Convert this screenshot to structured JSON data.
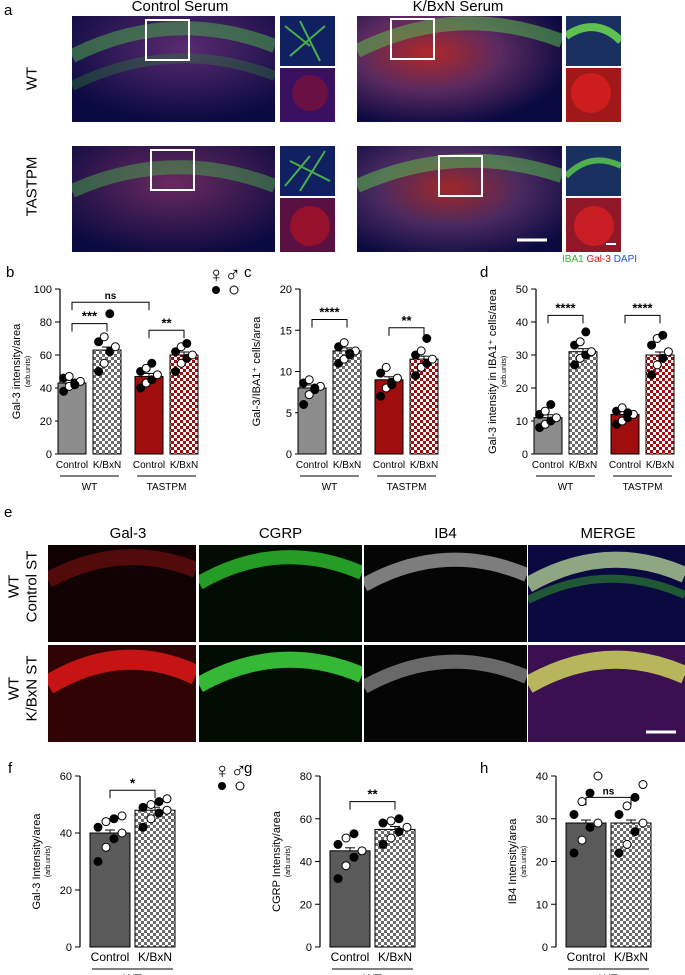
{
  "panel_a": {
    "letter": "a",
    "col_titles": [
      "Control Serum",
      "K/BxN Serum"
    ],
    "row_labels": [
      "WT",
      "TASTPM"
    ],
    "channel_legend": [
      {
        "text": "IBA1",
        "color": "#2db52d"
      },
      {
        "text": "Gal-3",
        "color": "#e01010"
      },
      {
        "text": "DAPI",
        "color": "#2050e0"
      }
    ]
  },
  "panel_e": {
    "letter": "e",
    "col_titles": [
      "Gal-3",
      "CGRP",
      "IB4",
      "MERGE"
    ],
    "row_labels_top": [
      "WT",
      "WT"
    ],
    "row_labels_bottom": [
      "Control ST",
      "K/BxN ST"
    ]
  },
  "sex_symbols": {
    "female": "♀",
    "male": "♂"
  },
  "chart_data": [
    {
      "type": "bar",
      "letter": "b",
      "ylabel": "Gal-3 intensity/area",
      "yunit": "(arb.units)",
      "ylim": [
        0,
        100
      ],
      "yticks": [
        "0",
        "20",
        "40",
        "60",
        "80",
        "100"
      ],
      "categories": [
        "Control",
        "K/BxN",
        "Control",
        "K/BxN"
      ],
      "groups": [
        "WT",
        "TASTPM"
      ],
      "values": [
        43,
        63,
        47,
        60
      ],
      "fills": [
        "#8c8c8c",
        "checker-grey",
        "#a00d0d",
        "checker-red"
      ],
      "points": [
        [
          38,
          41,
          43,
          44,
          46,
          47,
          42
        ],
        [
          50,
          55,
          62,
          65,
          68,
          71,
          85
        ],
        [
          40,
          43,
          45,
          48,
          50,
          52,
          55
        ],
        [
          50,
          55,
          58,
          60,
          62,
          65,
          67
        ]
      ],
      "comparisons": [
        {
          "from": 0,
          "to": 1,
          "label": "***",
          "y": 79
        },
        {
          "from": 2,
          "to": 3,
          "label": "**",
          "y": 75
        },
        {
          "from": 0,
          "to": 2,
          "label": "ns",
          "y": 92
        }
      ]
    },
    {
      "type": "bar",
      "letter": "c",
      "ylabel": "Gal-3/IBA1⁺ cells/area",
      "yunit": "",
      "ylim": [
        0,
        20
      ],
      "yticks": [
        "0",
        "5",
        "10",
        "15",
        "20"
      ],
      "categories": [
        "Control",
        "K/BxN",
        "Control",
        "K/BxN"
      ],
      "groups": [
        "WT",
        "TASTPM"
      ],
      "values": [
        8.0,
        12.5,
        9.0,
        11.5
      ],
      "fills": [
        "#8c8c8c",
        "checker-grey",
        "#a00d0d",
        "checker-red"
      ],
      "points": [
        [
          6,
          7.2,
          7.8,
          8.2,
          8.6,
          9.0,
          8.0
        ],
        [
          11,
          11.5,
          12,
          12.5,
          13,
          13.5,
          12.2
        ],
        [
          7,
          8,
          8.7,
          9.2,
          9.8,
          10.5,
          8.4
        ],
        [
          9.5,
          10.5,
          11,
          11.5,
          12,
          12.5,
          14
        ]
      ],
      "comparisons": [
        {
          "from": 0,
          "to": 1,
          "label": "****",
          "y": 16.3
        },
        {
          "from": 2,
          "to": 3,
          "label": "**",
          "y": 15.3
        }
      ]
    },
    {
      "type": "bar",
      "letter": "d",
      "ylabel": "Gal-3 intensity in IBA1⁺ cells/area",
      "yunit": "(arb.units)",
      "ylim": [
        0,
        50
      ],
      "yticks": [
        "0",
        "10",
        "20",
        "30",
        "40",
        "50"
      ],
      "categories": [
        "Control",
        "K/BxN",
        "Control",
        "K/BxN"
      ],
      "groups": [
        "WT",
        "TASTPM"
      ],
      "values": [
        11,
        31,
        12,
        30
      ],
      "fills": [
        "#8c8c8c",
        "checker-grey",
        "#a00d0d",
        "checker-red"
      ],
      "points": [
        [
          8,
          9,
          10,
          11,
          12,
          13,
          15
        ],
        [
          27,
          29,
          30,
          31,
          33,
          34,
          37
        ],
        [
          9,
          10,
          11,
          12,
          13,
          14,
          12.5
        ],
        [
          24,
          27,
          29,
          31,
          33,
          35,
          36
        ]
      ],
      "comparisons": [
        {
          "from": 0,
          "to": 1,
          "label": "****",
          "y": 42
        },
        {
          "from": 2,
          "to": 3,
          "label": "****",
          "y": 42
        }
      ]
    },
    {
      "type": "bar",
      "letter": "f",
      "ylabel": "Gal-3 Intensity/area",
      "yunit": "(arb.units)",
      "ylim": [
        0,
        60
      ],
      "yticks": [
        "0",
        "20",
        "40",
        "60"
      ],
      "categories": [
        "Control",
        "K/BxN"
      ],
      "groups": [
        "WT"
      ],
      "values": [
        40,
        48
      ],
      "fills": [
        "#5a5a5a",
        "checker-grey"
      ],
      "points": [
        [
          30,
          35,
          38,
          40,
          42,
          44,
          45,
          46
        ],
        [
          42,
          45,
          47,
          48,
          49,
          50,
          51,
          52
        ]
      ],
      "comparisons": [
        {
          "from": 0,
          "to": 1,
          "label": "*",
          "y": 55
        }
      ]
    },
    {
      "type": "bar",
      "letter": "g",
      "ylabel": "CGRP Intensity/area",
      "yunit": "(arb.units)",
      "ylim": [
        0,
        80
      ],
      "yticks": [
        "0",
        "20",
        "40",
        "60",
        "80"
      ],
      "categories": [
        "Control",
        "K/BxN"
      ],
      "groups": [
        "WT"
      ],
      "values": [
        45,
        55
      ],
      "fills": [
        "#5a5a5a",
        "checker-grey"
      ],
      "points": [
        [
          32,
          38,
          42,
          45,
          48,
          51,
          53
        ],
        [
          48,
          51,
          54,
          56,
          58,
          59,
          60
        ]
      ],
      "comparisons": [
        {
          "from": 0,
          "to": 1,
          "label": "**",
          "y": 68
        }
      ]
    },
    {
      "type": "bar",
      "letter": "h",
      "ylabel": "IB4 Intensity/area",
      "yunit": "(arb.units)",
      "ylim": [
        0,
        40
      ],
      "yticks": [
        "0",
        "10",
        "20",
        "30",
        "40"
      ],
      "categories": [
        "Control",
        "K/BxN"
      ],
      "groups": [
        "WT"
      ],
      "values": [
        29,
        29
      ],
      "fills": [
        "#5a5a5a",
        "checker-grey"
      ],
      "points": [
        [
          22,
          25,
          28,
          29,
          31,
          34,
          36,
          40
        ],
        [
          22,
          24,
          27,
          29,
          31,
          33,
          35,
          38
        ]
      ],
      "comparisons": [
        {
          "from": 0,
          "to": 1,
          "label": "ns",
          "y": 35
        }
      ]
    }
  ]
}
